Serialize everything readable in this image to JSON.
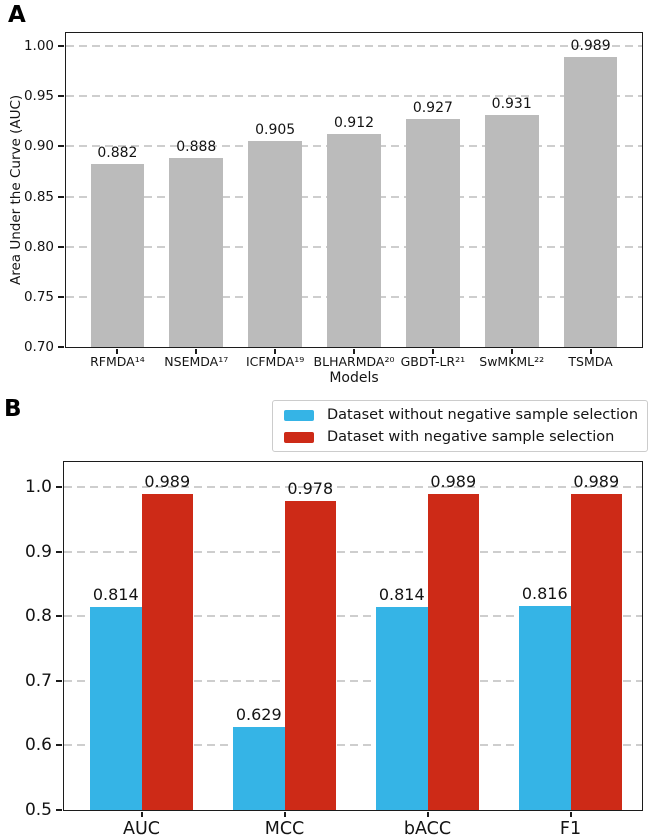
{
  "panels": {
    "a_label": "A",
    "b_label": "B"
  },
  "colors": {
    "bar_gray": "#bbbbbb",
    "bar_cyan": "#35b4e6",
    "bar_red": "#cd2a17",
    "grid": "#cecece",
    "axis": "#1c1c1c",
    "legend_border": "#cccccc"
  },
  "chart_data": [
    {
      "type": "bar",
      "panel": "A",
      "categories": [
        "RFMDA¹⁴",
        "NSEMDA¹⁷",
        "ICFMDA¹⁹",
        "BLHARMDA²⁰",
        "GBDT-LR²¹",
        "SwMKML²²",
        "TSMDA"
      ],
      "values": [
        0.882,
        0.888,
        0.905,
        0.912,
        0.927,
        0.931,
        0.989
      ],
      "value_labels": [
        "0.882",
        "0.888",
        "0.905",
        "0.912",
        "0.927",
        "0.931",
        "0.989"
      ],
      "xlabel": "Models",
      "ylabel": "Area Under the Curve (AUC)",
      "ylim": [
        0.7,
        1.0
      ],
      "ymax_display": 1.013,
      "yticks": [
        "1.00",
        "0.95",
        "0.90",
        "0.85",
        "0.80",
        "0.75",
        "0.70"
      ],
      "ytick_values": [
        1.0,
        0.95,
        0.9,
        0.85,
        0.8,
        0.75,
        0.7
      ],
      "grid": "horizontal-dashed",
      "bar_color_key": "bar_gray",
      "legend_position": "none"
    },
    {
      "type": "bar",
      "panel": "B",
      "categories": [
        "AUC",
        "MCC",
        "bACC",
        "F1"
      ],
      "series": [
        {
          "name": "Dataset without negative sample selection",
          "color_key": "bar_cyan",
          "values": [
            0.814,
            0.629,
            0.814,
            0.816
          ],
          "value_labels": [
            "0.814",
            "0.629",
            "0.814",
            "0.816"
          ]
        },
        {
          "name": "Dataset with negative sample selection",
          "color_key": "bar_red",
          "values": [
            0.989,
            0.978,
            0.989,
            0.989
          ],
          "value_labels": [
            "0.989",
            "0.978",
            "0.989",
            "0.989"
          ]
        }
      ],
      "xlabel": "",
      "ylabel": "",
      "ylim": [
        0.5,
        1.0
      ],
      "ymax_display": 1.039,
      "yticks": [
        "1.0",
        "0.9",
        "0.8",
        "0.7",
        "0.6",
        "0.5"
      ],
      "ytick_values": [
        1.0,
        0.9,
        0.8,
        0.7,
        0.6,
        0.5
      ],
      "grid": "horizontal-dashed",
      "legend_position": "top-right-above-plot"
    }
  ]
}
